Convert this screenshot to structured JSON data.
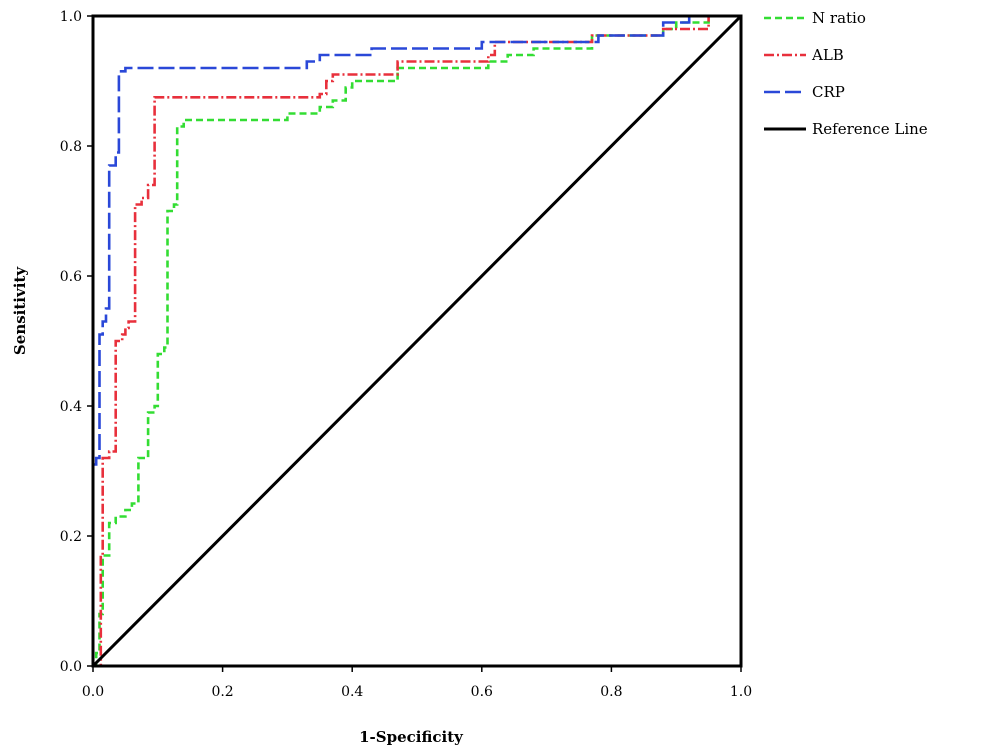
{
  "chart_data": {
    "type": "line",
    "title": "",
    "xlabel": "1-Specificity",
    "ylabel": "Sensitivity",
    "xlim": [
      0,
      1
    ],
    "ylim": [
      0,
      1
    ],
    "xticks": [
      "0.0",
      "0.2",
      "0.4",
      "0.6",
      "0.8",
      "1.0"
    ],
    "yticks": [
      "0.0",
      "0.2",
      "0.4",
      "0.6",
      "0.8",
      "1.0"
    ],
    "grid": false,
    "legend_position": "right",
    "series": [
      {
        "name": "N ratio",
        "color": "#33dd33",
        "dash": "dashed",
        "points": [
          [
            0,
            0
          ],
          [
            0.005,
            0
          ],
          [
            0.005,
            0.02
          ],
          [
            0.01,
            0.02
          ],
          [
            0.01,
            0.08
          ],
          [
            0.015,
            0.08
          ],
          [
            0.015,
            0.17
          ],
          [
            0.025,
            0.17
          ],
          [
            0.025,
            0.22
          ],
          [
            0.035,
            0.22
          ],
          [
            0.035,
            0.23
          ],
          [
            0.05,
            0.23
          ],
          [
            0.05,
            0.24
          ],
          [
            0.06,
            0.24
          ],
          [
            0.06,
            0.25
          ],
          [
            0.07,
            0.25
          ],
          [
            0.07,
            0.32
          ],
          [
            0.085,
            0.32
          ],
          [
            0.085,
            0.39
          ],
          [
            0.095,
            0.39
          ],
          [
            0.095,
            0.4
          ],
          [
            0.1,
            0.4
          ],
          [
            0.1,
            0.48
          ],
          [
            0.11,
            0.48
          ],
          [
            0.11,
            0.49
          ],
          [
            0.115,
            0.49
          ],
          [
            0.115,
            0.7
          ],
          [
            0.125,
            0.7
          ],
          [
            0.125,
            0.71
          ],
          [
            0.13,
            0.71
          ],
          [
            0.13,
            0.83
          ],
          [
            0.14,
            0.83
          ],
          [
            0.14,
            0.84
          ],
          [
            0.3,
            0.84
          ],
          [
            0.3,
            0.85
          ],
          [
            0.35,
            0.85
          ],
          [
            0.35,
            0.86
          ],
          [
            0.37,
            0.86
          ],
          [
            0.37,
            0.87
          ],
          [
            0.39,
            0.87
          ],
          [
            0.39,
            0.89
          ],
          [
            0.4,
            0.89
          ],
          [
            0.4,
            0.9
          ],
          [
            0.47,
            0.9
          ],
          [
            0.47,
            0.92
          ],
          [
            0.61,
            0.92
          ],
          [
            0.61,
            0.93
          ],
          [
            0.64,
            0.93
          ],
          [
            0.64,
            0.94
          ],
          [
            0.68,
            0.94
          ],
          [
            0.68,
            0.95
          ],
          [
            0.77,
            0.95
          ],
          [
            0.77,
            0.97
          ],
          [
            0.88,
            0.97
          ],
          [
            0.88,
            0.98
          ],
          [
            0.9,
            0.98
          ],
          [
            0.9,
            0.99
          ],
          [
            0.95,
            0.99
          ],
          [
            0.95,
            1.0
          ],
          [
            1.0,
            1.0
          ]
        ]
      },
      {
        "name": "ALB",
        "color": "#e8303c",
        "dash": "dashdot",
        "points": [
          [
            0,
            0
          ],
          [
            0.012,
            0
          ],
          [
            0.012,
            0.17
          ],
          [
            0.015,
            0.17
          ],
          [
            0.015,
            0.32
          ],
          [
            0.025,
            0.32
          ],
          [
            0.025,
            0.33
          ],
          [
            0.035,
            0.33
          ],
          [
            0.035,
            0.5
          ],
          [
            0.045,
            0.5
          ],
          [
            0.045,
            0.51
          ],
          [
            0.05,
            0.51
          ],
          [
            0.05,
            0.52
          ],
          [
            0.055,
            0.52
          ],
          [
            0.055,
            0.53
          ],
          [
            0.065,
            0.53
          ],
          [
            0.065,
            0.71
          ],
          [
            0.075,
            0.71
          ],
          [
            0.075,
            0.72
          ],
          [
            0.085,
            0.72
          ],
          [
            0.085,
            0.74
          ],
          [
            0.095,
            0.74
          ],
          [
            0.095,
            0.875
          ],
          [
            0.35,
            0.875
          ],
          [
            0.35,
            0.88
          ],
          [
            0.36,
            0.88
          ],
          [
            0.36,
            0.9
          ],
          [
            0.37,
            0.9
          ],
          [
            0.37,
            0.91
          ],
          [
            0.47,
            0.91
          ],
          [
            0.47,
            0.93
          ],
          [
            0.61,
            0.93
          ],
          [
            0.61,
            0.94
          ],
          [
            0.62,
            0.94
          ],
          [
            0.62,
            0.96
          ],
          [
            0.77,
            0.96
          ],
          [
            0.77,
            0.97
          ],
          [
            0.88,
            0.97
          ],
          [
            0.88,
            0.98
          ],
          [
            0.95,
            0.98
          ],
          [
            0.95,
            1.0
          ],
          [
            1.0,
            1.0
          ]
        ]
      },
      {
        "name": "CRP",
        "color": "#2a48d8",
        "dash": "longdash",
        "points": [
          [
            0,
            0.31
          ],
          [
            0.005,
            0.31
          ],
          [
            0.005,
            0.32
          ],
          [
            0.01,
            0.32
          ],
          [
            0.01,
            0.51
          ],
          [
            0.015,
            0.51
          ],
          [
            0.015,
            0.53
          ],
          [
            0.02,
            0.53
          ],
          [
            0.02,
            0.55
          ],
          [
            0.025,
            0.55
          ],
          [
            0.025,
            0.77
          ],
          [
            0.035,
            0.77
          ],
          [
            0.035,
            0.79
          ],
          [
            0.04,
            0.79
          ],
          [
            0.04,
            0.915
          ],
          [
            0.05,
            0.915
          ],
          [
            0.05,
            0.92
          ],
          [
            0.33,
            0.92
          ],
          [
            0.33,
            0.93
          ],
          [
            0.35,
            0.93
          ],
          [
            0.35,
            0.94
          ],
          [
            0.43,
            0.94
          ],
          [
            0.43,
            0.95
          ],
          [
            0.6,
            0.95
          ],
          [
            0.6,
            0.96
          ],
          [
            0.78,
            0.96
          ],
          [
            0.78,
            0.97
          ],
          [
            0.88,
            0.97
          ],
          [
            0.88,
            0.99
          ],
          [
            0.92,
            0.99
          ],
          [
            0.92,
            1.0
          ],
          [
            1.0,
            1.0
          ]
        ]
      },
      {
        "name": "Reference Line",
        "color": "#000000",
        "dash": "solid",
        "points": [
          [
            0,
            0
          ],
          [
            1,
            1
          ]
        ]
      }
    ]
  }
}
